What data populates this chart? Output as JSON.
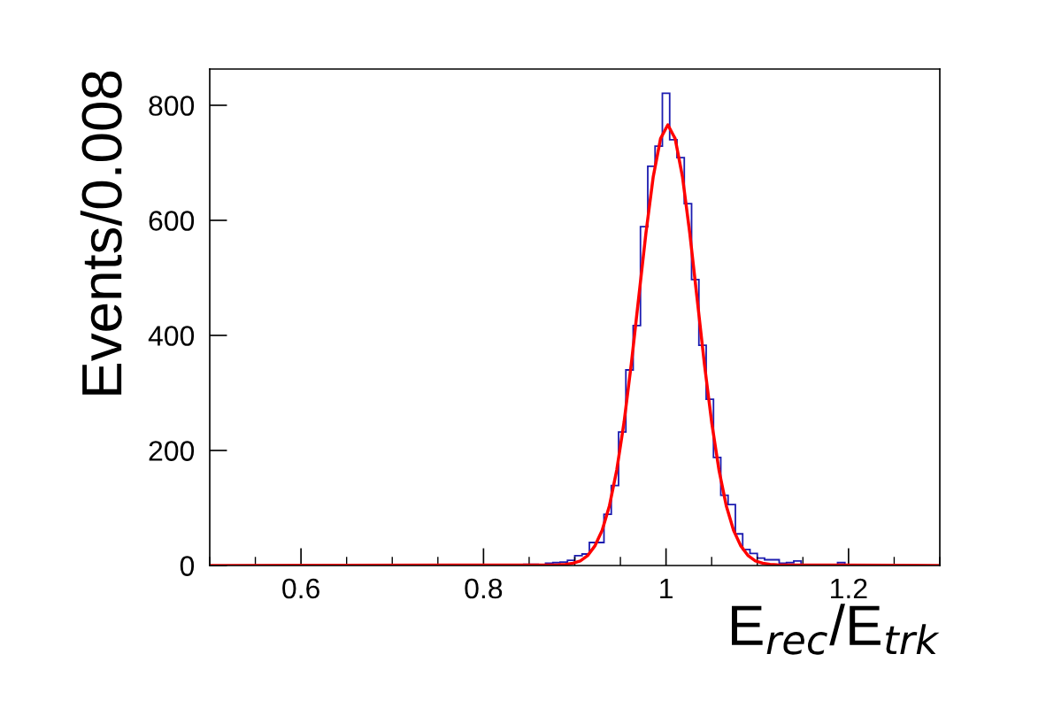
{
  "chart_data": {
    "type": "histogram",
    "xlabel": "E$_{rec}$/E$_{trk}$",
    "ylabel": "Events/0.008",
    "bins": [
      0.5,
      0.508,
      0.516,
      0.524,
      0.532,
      0.54,
      0.548,
      0.556,
      0.564,
      0.572,
      0.58,
      0.588,
      0.596,
      0.604,
      0.612,
      0.62,
      0.628,
      0.636,
      0.644,
      0.652,
      0.66,
      0.668,
      0.676,
      0.684,
      0.692,
      0.7,
      0.708,
      0.716,
      0.724,
      0.732,
      0.74,
      0.748,
      0.756,
      0.764,
      0.772,
      0.78,
      0.788,
      0.796,
      0.804,
      0.812,
      0.82,
      0.828,
      0.836,
      0.844,
      0.852,
      0.86,
      0.868,
      0.876,
      0.884,
      0.892,
      0.9,
      0.908,
      0.916,
      0.924,
      0.932,
      0.94,
      0.948,
      0.956,
      0.964,
      0.972,
      0.98,
      0.988,
      0.996,
      1.004,
      1.012,
      1.02,
      1.028,
      1.036,
      1.044,
      1.052,
      1.06,
      1.068,
      1.076,
      1.084,
      1.092,
      1.1,
      1.108,
      1.116,
      1.124,
      1.132,
      1.14,
      1.148,
      1.156,
      1.164,
      1.172,
      1.18,
      1.188,
      1.196,
      1.204,
      1.212,
      1.22,
      1.228,
      1.236,
      1.244,
      1.252,
      1.26,
      1.268,
      1.276,
      1.284,
      1.292,
      1.3
    ],
    "series": [
      {
        "color": "#1c1cb0",
        "values": [
          0,
          0,
          0,
          0,
          0,
          0,
          0,
          0,
          0,
          0,
          0,
          0,
          0,
          0,
          0,
          0,
          0,
          0,
          0,
          0,
          0,
          0,
          0,
          0,
          0,
          0,
          0,
          0,
          0,
          0,
          0,
          0,
          0,
          0,
          0,
          0,
          0,
          0,
          0,
          0,
          1,
          0,
          0,
          2,
          2,
          0,
          4,
          5,
          6,
          9,
          17,
          20,
          40,
          40,
          89,
          139,
          232,
          340,
          417,
          589,
          694,
          729,
          821,
          740,
          709,
          629,
          497,
          383,
          289,
          188,
          122,
          106,
          55,
          28,
          21,
          13,
          10,
          10,
          4,
          5,
          8,
          0,
          0,
          1,
          1,
          0,
          5,
          0,
          0,
          0,
          0,
          0,
          0,
          0,
          0,
          0,
          0,
          0,
          0,
          0
        ]
      },
      {
        "type": "line",
        "color": "#ff0000",
        "x": [
          0.5,
          0.882,
          0.89,
          0.898,
          0.906,
          0.914,
          0.922,
          0.93,
          0.938,
          0.946,
          0.954,
          0.962,
          0.97,
          0.978,
          0.986,
          0.994,
          1.002,
          1.01,
          1.018,
          1.026,
          1.034,
          1.042,
          1.05,
          1.058,
          1.066,
          1.074,
          1.082,
          1.09,
          1.098,
          1.106,
          1.114,
          1.122,
          1.3
        ],
        "values": [
          0,
          1,
          2,
          4,
          8,
          17,
          34,
          61,
          104,
          166,
          249,
          351,
          465,
          578,
          676,
          742,
          766,
          742,
          676,
          578,
          465,
          351,
          249,
          166,
          104,
          61,
          34,
          17,
          8,
          4,
          2,
          1,
          0
        ]
      }
    ],
    "xlim": [
      0.5,
      1.3
    ],
    "xticks": [
      {
        "value": 0.6,
        "label": "0.6"
      },
      {
        "value": 0.8,
        "label": "0.8"
      },
      {
        "value": 1.0,
        "label": "1"
      },
      {
        "value": 1.2,
        "label": "1.2"
      }
    ],
    "ylim": [
      0,
      863
    ],
    "yticks": [
      0,
      200,
      400,
      600,
      800
    ],
    "grid": false
  }
}
